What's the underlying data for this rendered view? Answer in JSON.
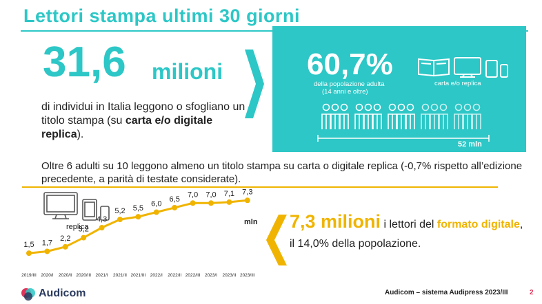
{
  "title": "Lettori  stampa ultimi 30 giorni",
  "headline": {
    "number": "31,6",
    "unit": "milioni",
    "desc_part1": "di individui in Italia leggono o sfogliano un titolo stampa (su ",
    "desc_bold": "carta e/o digitale replica",
    "desc_part2": ")."
  },
  "panel": {
    "percent": "60,7%",
    "subtitle_line1": "della popolazione adulta",
    "subtitle_line2": "(14 anni e oltre)",
    "carta_label": "carta e/o replica",
    "people_groups": 5,
    "filled_groups": 3,
    "scale_label": "52 mln",
    "bg_color": "#2cc7c6"
  },
  "note": "Oltre 6 adulti su 10 leggono almeno un titolo stampa su carta o digitale replica (-0,7% rispetto all’edizione precedente, a parità di testate considerate).",
  "digital": {
    "replica_label": "replica",
    "mln_label": "mln",
    "highlight_num": "7,3 milioni",
    "highlight_text1": " i lettori del ",
    "highlight_gold": "formato digitale",
    "highlight_text2": ", il 14,0% della popolazione."
  },
  "chart_data": {
    "type": "line",
    "categories": [
      "2019/III",
      "2020/I",
      "2020/II",
      "2020/III",
      "2021/I",
      "2021/II",
      "2021/III",
      "2022/I",
      "2022/II",
      "2022/III",
      "2023/I",
      "2023/II",
      "2023/III"
    ],
    "values": [
      1.5,
      1.7,
      2.2,
      3.2,
      4.3,
      5.2,
      5.5,
      6.0,
      6.5,
      7.0,
      7.0,
      7.1,
      7.3
    ],
    "labels": [
      "1,5",
      "1,7",
      "2,2",
      "3,2",
      "4,3",
      "5,2",
      "5,5",
      "6,0",
      "6,5",
      "7,0",
      "7,0",
      "7,1",
      "7,3"
    ],
    "color": "#f0b400",
    "ylim": [
      0,
      8
    ]
  },
  "footer": {
    "logo_text": "Audicom",
    "source": "Audicom – sistema Audipress 2023/III",
    "page": "2"
  },
  "colors": {
    "teal": "#2cc7c6",
    "gold": "#f0b400",
    "navy": "#2a3a5e"
  },
  "icons": [
    "book-icon",
    "monitor-icon",
    "tablet-icon",
    "phone-icon",
    "people-icon",
    "chevron-right-icon",
    "chevron-left-icon",
    "audicom-logo-icon"
  ]
}
